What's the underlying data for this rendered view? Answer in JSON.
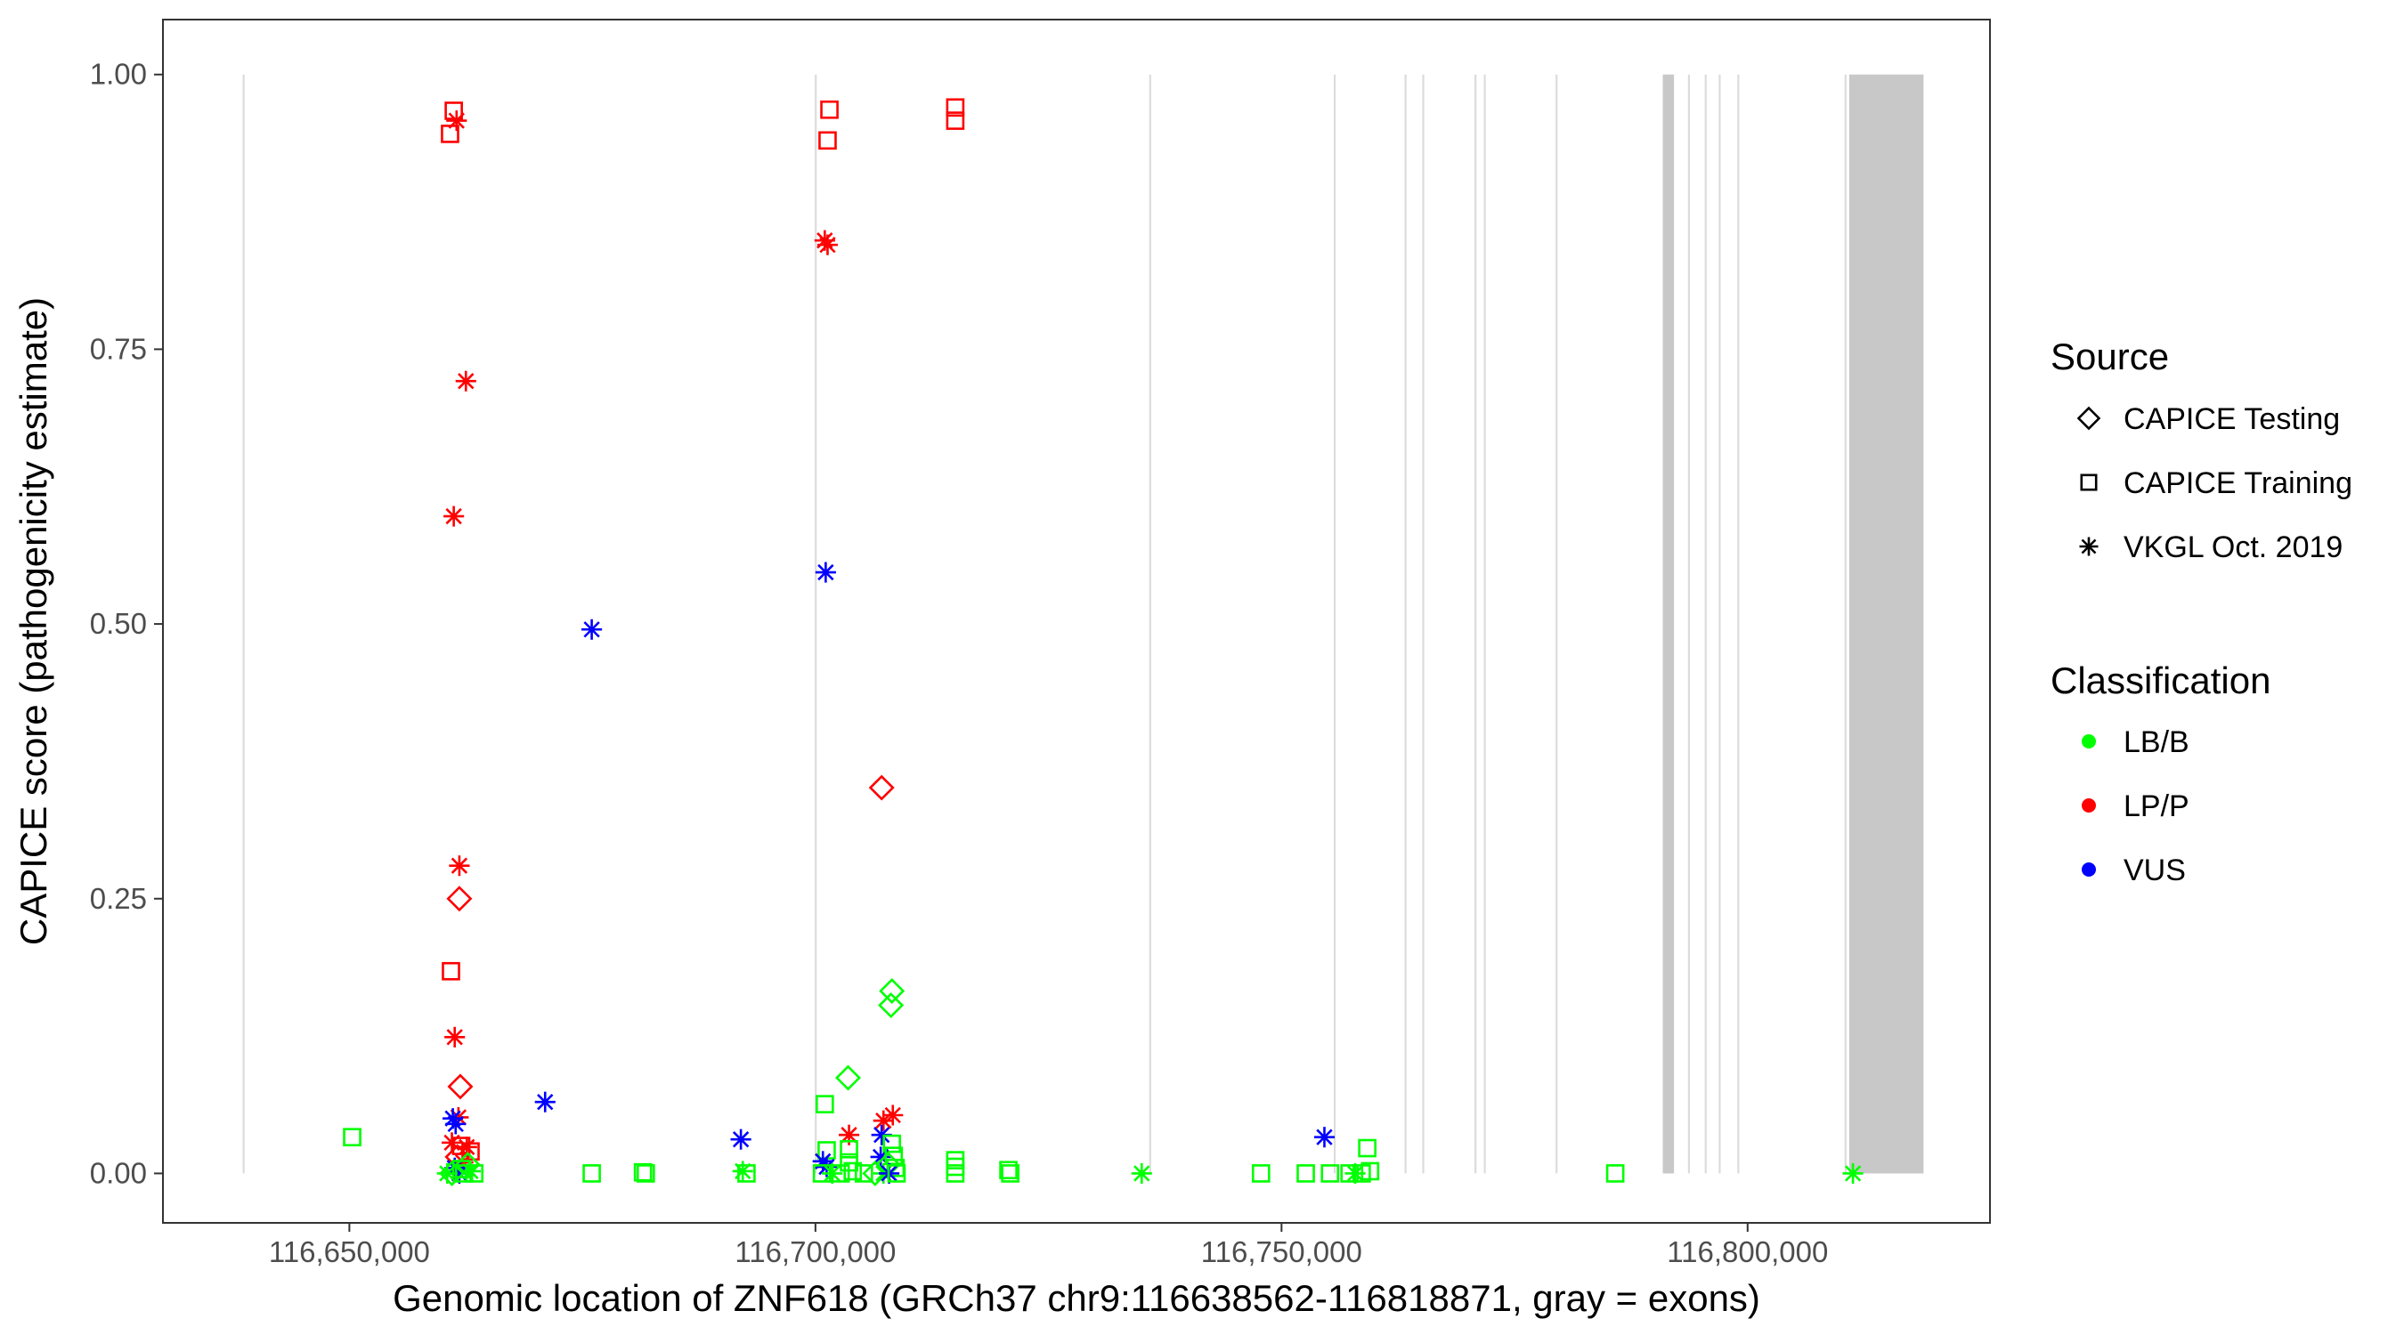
{
  "chart_data": {
    "type": "scatter",
    "xlabel": "Genomic location of ZNF618 (GRCh37 chr9:116638562-116818871, gray = exons)",
    "ylabel": "CAPICE score (pathogenicity estimate)",
    "xlim": [
      116630000,
      116826000
    ],
    "ylim": [
      -0.045,
      1.05
    ],
    "x_ticks": [
      116650000,
      116700000,
      116750000,
      116800000
    ],
    "x_tick_labels": [
      "116,650,000",
      "116,700,000",
      "116,750,000",
      "116,800,000"
    ],
    "y_ticks": [
      0,
      0.25,
      0.5,
      0.75,
      1.0
    ],
    "y_tick_labels": [
      "0.00",
      "0.25",
      "0.50",
      "0.75",
      "1.00"
    ],
    "grid": false,
    "exons": [
      [
        116638550,
        116638650
      ],
      [
        116699930,
        116700030
      ],
      [
        116735800,
        116735900
      ],
      [
        116755600,
        116755800
      ],
      [
        116763200,
        116763300
      ],
      [
        116765100,
        116765200
      ],
      [
        116770700,
        116770800
      ],
      [
        116771700,
        116771800
      ],
      [
        116779400,
        116779500
      ],
      [
        116790900,
        116792100
      ],
      [
        116793600,
        116793700
      ],
      [
        116795400,
        116795500
      ],
      [
        116796900,
        116797000
      ],
      [
        116798900,
        116799000
      ],
      [
        116810400,
        116810600
      ],
      [
        116810900,
        116818871
      ]
    ],
    "legend": {
      "placement": "right",
      "source_title": "Source",
      "source_items": [
        {
          "shape": "diamond",
          "label": "CAPICE Testing"
        },
        {
          "shape": "square",
          "label": "CAPICE Training"
        },
        {
          "shape": "asterisk",
          "label": "VKGL Oct. 2019"
        }
      ],
      "class_title": "Classification",
      "class_items": [
        {
          "key": "LB/B",
          "label": "LB/B",
          "color": "#00ff00"
        },
        {
          "key": "LP/P",
          "label": "LP/P",
          "color": "#ff0000"
        },
        {
          "key": "VUS",
          "label": "VUS",
          "color": "#0000ff"
        }
      ]
    },
    "points": [
      {
        "x": 116661200,
        "y": 0.967,
        "shape": "square",
        "cls": "LP/P"
      },
      {
        "x": 116660800,
        "y": 0.946,
        "shape": "square",
        "cls": "LP/P"
      },
      {
        "x": 116661500,
        "y": 0.958,
        "shape": "asterisk",
        "cls": "LP/P"
      },
      {
        "x": 116662500,
        "y": 0.721,
        "shape": "asterisk",
        "cls": "LP/P"
      },
      {
        "x": 116661200,
        "y": 0.598,
        "shape": "asterisk",
        "cls": "LP/P"
      },
      {
        "x": 116661800,
        "y": 0.28,
        "shape": "asterisk",
        "cls": "LP/P"
      },
      {
        "x": 116661800,
        "y": 0.25,
        "shape": "diamond",
        "cls": "LP/P"
      },
      {
        "x": 116660900,
        "y": 0.184,
        "shape": "square",
        "cls": "LP/P"
      },
      {
        "x": 116661300,
        "y": 0.124,
        "shape": "asterisk",
        "cls": "LP/P"
      },
      {
        "x": 116661900,
        "y": 0.079,
        "shape": "diamond",
        "cls": "LP/P"
      },
      {
        "x": 116661700,
        "y": 0.051,
        "shape": "asterisk",
        "cls": "LP/P"
      },
      {
        "x": 116661100,
        "y": 0.05,
        "shape": "asterisk",
        "cls": "VUS"
      },
      {
        "x": 116661400,
        "y": 0.045,
        "shape": "asterisk",
        "cls": "VUS"
      },
      {
        "x": 116661000,
        "y": 0.028,
        "shape": "asterisk",
        "cls": "LP/P"
      },
      {
        "x": 116662000,
        "y": 0.025,
        "shape": "square",
        "cls": "LP/P"
      },
      {
        "x": 116662600,
        "y": 0.024,
        "shape": "asterisk",
        "cls": "LP/P"
      },
      {
        "x": 116663000,
        "y": 0.02,
        "shape": "square",
        "cls": "LP/P"
      },
      {
        "x": 116661600,
        "y": 0.015,
        "shape": "diamond",
        "cls": "LP/P"
      },
      {
        "x": 116662200,
        "y": 0.01,
        "shape": "asterisk",
        "cls": "LP/P"
      },
      {
        "x": 116661300,
        "y": 0.005,
        "shape": "asterisk",
        "cls": "VUS"
      },
      {
        "x": 116661800,
        "y": 0.0,
        "shape": "asterisk",
        "cls": "VUS"
      },
      {
        "x": 116661000,
        "y": 0.0,
        "shape": "diamond",
        "cls": "LB/B"
      },
      {
        "x": 116662300,
        "y": 0.0,
        "shape": "square",
        "cls": "LB/B"
      },
      {
        "x": 116663000,
        "y": 0.002,
        "shape": "asterisk",
        "cls": "LB/B"
      },
      {
        "x": 116663400,
        "y": 0.0,
        "shape": "square",
        "cls": "LB/B"
      },
      {
        "x": 116660500,
        "y": 0.0,
        "shape": "asterisk",
        "cls": "LB/B"
      },
      {
        "x": 116662700,
        "y": 0.008,
        "shape": "diamond",
        "cls": "LB/B"
      },
      {
        "x": 116662000,
        "y": 0.004,
        "shape": "square",
        "cls": "LB/B"
      },
      {
        "x": 116650300,
        "y": 0.033,
        "shape": "square",
        "cls": "LB/B"
      },
      {
        "x": 116671000,
        "y": 0.065,
        "shape": "asterisk",
        "cls": "VUS"
      },
      {
        "x": 116676000,
        "y": 0.495,
        "shape": "asterisk",
        "cls": "VUS"
      },
      {
        "x": 116676000,
        "y": 0.0,
        "shape": "square",
        "cls": "LB/B"
      },
      {
        "x": 116681500,
        "y": 0.001,
        "shape": "square",
        "cls": "LB/B"
      },
      {
        "x": 116681800,
        "y": 0.0,
        "shape": "square",
        "cls": "LB/B"
      },
      {
        "x": 116692000,
        "y": 0.031,
        "shape": "asterisk",
        "cls": "VUS"
      },
      {
        "x": 116692200,
        "y": 0.002,
        "shape": "asterisk",
        "cls": "LB/B"
      },
      {
        "x": 116692600,
        "y": 0.0,
        "shape": "square",
        "cls": "LB/B"
      },
      {
        "x": 116701500,
        "y": 0.968,
        "shape": "square",
        "cls": "LP/P"
      },
      {
        "x": 116701300,
        "y": 0.94,
        "shape": "square",
        "cls": "LP/P"
      },
      {
        "x": 116701000,
        "y": 0.849,
        "shape": "asterisk",
        "cls": "LP/P"
      },
      {
        "x": 116701300,
        "y": 0.845,
        "shape": "asterisk",
        "cls": "LP/P"
      },
      {
        "x": 116701100,
        "y": 0.547,
        "shape": "asterisk",
        "cls": "VUS"
      },
      {
        "x": 116707100,
        "y": 0.351,
        "shape": "diamond",
        "cls": "LP/P"
      },
      {
        "x": 116708200,
        "y": 0.166,
        "shape": "diamond",
        "cls": "LB/B"
      },
      {
        "x": 116708100,
        "y": 0.153,
        "shape": "diamond",
        "cls": "LB/B"
      },
      {
        "x": 116703500,
        "y": 0.087,
        "shape": "diamond",
        "cls": "LB/B"
      },
      {
        "x": 116701000,
        "y": 0.063,
        "shape": "square",
        "cls": "LB/B"
      },
      {
        "x": 116708300,
        "y": 0.053,
        "shape": "asterisk",
        "cls": "LP/P"
      },
      {
        "x": 116707300,
        "y": 0.048,
        "shape": "asterisk",
        "cls": "LP/P"
      },
      {
        "x": 116703600,
        "y": 0.035,
        "shape": "asterisk",
        "cls": "LP/P"
      },
      {
        "x": 116707100,
        "y": 0.035,
        "shape": "asterisk",
        "cls": "VUS"
      },
      {
        "x": 116708200,
        "y": 0.027,
        "shape": "square",
        "cls": "LB/B"
      },
      {
        "x": 116703600,
        "y": 0.022,
        "shape": "square",
        "cls": "LB/B"
      },
      {
        "x": 116701200,
        "y": 0.021,
        "shape": "square",
        "cls": "LB/B"
      },
      {
        "x": 116707000,
        "y": 0.015,
        "shape": "asterisk",
        "cls": "VUS"
      },
      {
        "x": 116708400,
        "y": 0.016,
        "shape": "square",
        "cls": "LB/B"
      },
      {
        "x": 116700800,
        "y": 0.011,
        "shape": "asterisk",
        "cls": "VUS"
      },
      {
        "x": 116701200,
        "y": 0.006,
        "shape": "asterisk",
        "cls": "VUS"
      },
      {
        "x": 116703600,
        "y": 0.01,
        "shape": "square",
        "cls": "LB/B"
      },
      {
        "x": 116707800,
        "y": 0.008,
        "shape": "diamond",
        "cls": "LB/B"
      },
      {
        "x": 116708600,
        "y": 0.005,
        "shape": "square",
        "cls": "LB/B"
      },
      {
        "x": 116700700,
        "y": 0.0,
        "shape": "square",
        "cls": "LB/B"
      },
      {
        "x": 116701800,
        "y": 0.0,
        "shape": "asterisk",
        "cls": "LB/B"
      },
      {
        "x": 116702700,
        "y": 0.0,
        "shape": "square",
        "cls": "LB/B"
      },
      {
        "x": 116704000,
        "y": 0.002,
        "shape": "square",
        "cls": "LB/B"
      },
      {
        "x": 116705200,
        "y": 0.0,
        "shape": "square",
        "cls": "LB/B"
      },
      {
        "x": 116706400,
        "y": 0.0,
        "shape": "diamond",
        "cls": "LB/B"
      },
      {
        "x": 116707300,
        "y": 0.0,
        "shape": "asterisk",
        "cls": "LB/B"
      },
      {
        "x": 116707900,
        "y": 0.0,
        "shape": "asterisk",
        "cls": "VUS"
      },
      {
        "x": 116708700,
        "y": 0.0,
        "shape": "square",
        "cls": "LB/B"
      },
      {
        "x": 116715000,
        "y": 0.97,
        "shape": "square",
        "cls": "LP/P"
      },
      {
        "x": 116715000,
        "y": 0.958,
        "shape": "square",
        "cls": "LP/P"
      },
      {
        "x": 116715000,
        "y": 0.012,
        "shape": "square",
        "cls": "LB/B"
      },
      {
        "x": 116715000,
        "y": 0.006,
        "shape": "square",
        "cls": "LB/B"
      },
      {
        "x": 116715000,
        "y": 0.0,
        "shape": "square",
        "cls": "LB/B"
      },
      {
        "x": 116720700,
        "y": 0.003,
        "shape": "square",
        "cls": "LB/B"
      },
      {
        "x": 116720900,
        "y": 0.0,
        "shape": "square",
        "cls": "LB/B"
      },
      {
        "x": 116735000,
        "y": 0.0,
        "shape": "asterisk",
        "cls": "LB/B"
      },
      {
        "x": 116747800,
        "y": 0.0,
        "shape": "square",
        "cls": "LB/B"
      },
      {
        "x": 116752600,
        "y": 0.0,
        "shape": "square",
        "cls": "LB/B"
      },
      {
        "x": 116754600,
        "y": 0.033,
        "shape": "asterisk",
        "cls": "VUS"
      },
      {
        "x": 116755200,
        "y": 0.0,
        "shape": "square",
        "cls": "LB/B"
      },
      {
        "x": 116757300,
        "y": 0.0,
        "shape": "square",
        "cls": "LB/B"
      },
      {
        "x": 116757900,
        "y": 0.0,
        "shape": "asterisk",
        "cls": "LB/B"
      },
      {
        "x": 116758600,
        "y": 0.0,
        "shape": "square",
        "cls": "LB/B"
      },
      {
        "x": 116759200,
        "y": 0.023,
        "shape": "square",
        "cls": "LB/B"
      },
      {
        "x": 116759500,
        "y": 0.002,
        "shape": "square",
        "cls": "LB/B"
      },
      {
        "x": 116785800,
        "y": 0.0,
        "shape": "square",
        "cls": "LB/B"
      },
      {
        "x": 116811300,
        "y": 0.0,
        "shape": "asterisk",
        "cls": "LB/B"
      }
    ]
  }
}
